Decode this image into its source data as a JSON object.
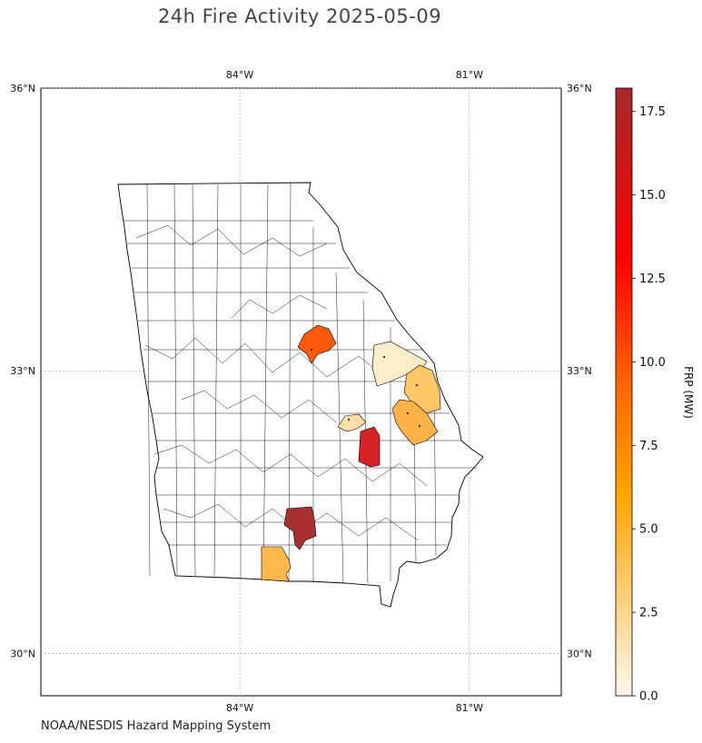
{
  "title": "24h Fire Activity 2025-05-09",
  "credit": "NOAA/NESDIS Hazard Mapping System",
  "map": {
    "extent_lon": [
      -86.6,
      -79.8
    ],
    "extent_lat": [
      29.55,
      36.0
    ],
    "lon_ticks": [
      {
        "value": -84,
        "label": "84°W"
      },
      {
        "value": -81,
        "label": "81°W"
      }
    ],
    "lat_ticks": [
      {
        "value": 36,
        "label": "36°N"
      },
      {
        "value": 33,
        "label": "33°N"
      },
      {
        "value": 30,
        "label": "30°N"
      }
    ],
    "gridlines": true,
    "state": "Georgia",
    "background_color": "#ffffff",
    "county_outline_color": "#000000"
  },
  "colorbar": {
    "label": "FRP (MW)",
    "min": 0,
    "max": 18.2,
    "ticks": [
      {
        "value": 0,
        "label": "0.0"
      },
      {
        "value": 2.5,
        "label": "2.5"
      },
      {
        "value": 5,
        "label": "5.0"
      },
      {
        "value": 7.5,
        "label": "7.5"
      },
      {
        "value": 10,
        "label": "10.0"
      },
      {
        "value": 12.5,
        "label": "12.5"
      },
      {
        "value": 15,
        "label": "15.0"
      },
      {
        "value": 17.5,
        "label": "17.5"
      }
    ],
    "colors": [
      "#fff8ec",
      "#ffd58a",
      "#ffa500",
      "#ff6a00",
      "#ff0000",
      "#a52a2a"
    ]
  },
  "fire_counties": [
    {
      "id": "north-central-county",
      "frp": 9.0,
      "color": "#ff5a0a"
    },
    {
      "id": "east-county-a",
      "frp": 0.9,
      "color": "#ffecc8"
    },
    {
      "id": "east-county-b",
      "frp": 3.8,
      "color": "#ffc766"
    },
    {
      "id": "east-county-c",
      "frp": 4.6,
      "color": "#ffb347"
    },
    {
      "id": "central-county-a",
      "frp": 1.9,
      "color": "#ffdfa8"
    },
    {
      "id": "central-county-b",
      "frp": 14.2,
      "color": "#d62222"
    },
    {
      "id": "south-county-a",
      "frp": 17.8,
      "color": "#a83030"
    },
    {
      "id": "south-county-b",
      "frp": 4.9,
      "color": "#ffb84a"
    }
  ]
}
